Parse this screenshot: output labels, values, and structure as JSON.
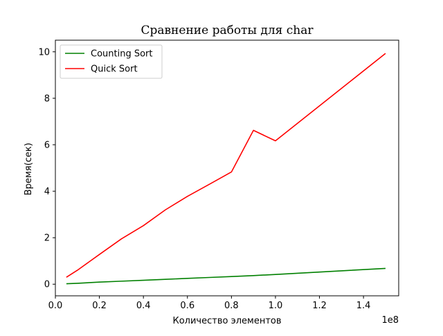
{
  "chart_data": {
    "type": "line",
    "title": "Сравнение работы для char",
    "xlabel": "Количество элементов",
    "ylabel": "Время(сек)",
    "x_offset_label": "1e8",
    "xlim": [
      0,
      1.56
    ],
    "ylim": [
      -0.5,
      10.5
    ],
    "x_ticks": [
      0.0,
      0.2,
      0.4,
      0.6,
      0.8,
      1.0,
      1.2,
      1.4
    ],
    "x_tick_labels": [
      "0.0",
      "0.2",
      "0.4",
      "0.6",
      "0.8",
      "1.0",
      "1.2",
      "1.4"
    ],
    "y_ticks": [
      0,
      2,
      4,
      6,
      8,
      10
    ],
    "y_tick_labels": [
      "0",
      "2",
      "4",
      "6",
      "8",
      "10"
    ],
    "grid": false,
    "legend_position": "top-left",
    "series": [
      {
        "name": "Counting Sort",
        "color": "#008000",
        "x": [
          0.05,
          0.1,
          0.2,
          0.3,
          0.4,
          0.5,
          0.6,
          0.7,
          0.8,
          0.9,
          1.0,
          1.5
        ],
        "y": [
          0.02,
          0.04,
          0.09,
          0.13,
          0.17,
          0.21,
          0.25,
          0.29,
          0.33,
          0.37,
          0.42,
          0.68
        ]
      },
      {
        "name": "Quick Sort",
        "color": "#ff0000",
        "x": [
          0.05,
          0.1,
          0.2,
          0.3,
          0.4,
          0.5,
          0.6,
          0.7,
          0.8,
          0.9,
          1.0,
          1.5
        ],
        "y": [
          0.3,
          0.6,
          1.28,
          1.95,
          2.52,
          3.2,
          3.78,
          4.3,
          4.83,
          6.62,
          6.17,
          9.93
        ]
      }
    ]
  }
}
